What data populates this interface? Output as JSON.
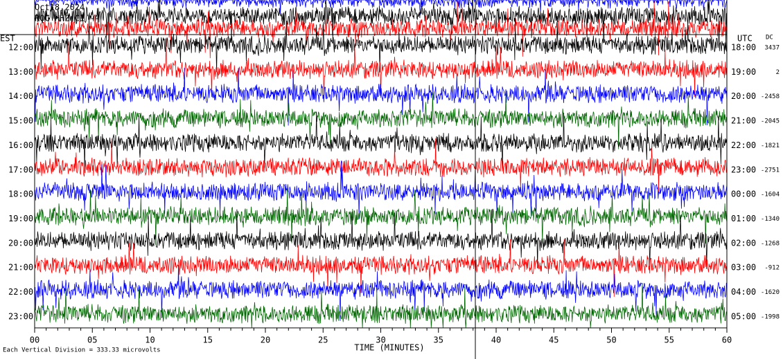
{
  "header": {
    "date": "Oct18,2024",
    "station": "ROC HHZ CI --",
    "left_zone": "EST",
    "right_zone": "UTC",
    "dc_label": "DC"
  },
  "rows": [
    {
      "est": "12:00",
      "utc": "18:00",
      "dc": "3437"
    },
    {
      "est": "13:00",
      "utc": "19:00",
      "dc": "2"
    },
    {
      "est": "14:00",
      "utc": "20:00",
      "dc": "-2458"
    },
    {
      "est": "15:00",
      "utc": "21:00",
      "dc": "-2045"
    },
    {
      "est": "16:00",
      "utc": "22:00",
      "dc": "-1821"
    },
    {
      "est": "17:00",
      "utc": "23:00",
      "dc": "-2751"
    },
    {
      "est": "18:00",
      "utc": "00:00",
      "dc": "-1604"
    },
    {
      "est": "19:00",
      "utc": "01:00",
      "dc": "-1340"
    },
    {
      "est": "20:00",
      "utc": "02:00",
      "dc": "-1268"
    },
    {
      "est": "21:00",
      "utc": "03:00",
      "dc": "-912"
    },
    {
      "est": "22:00",
      "utc": "04:00",
      "dc": "-1620"
    },
    {
      "est": "23:00",
      "utc": "05:00",
      "dc": "-1998"
    }
  ],
  "x_ticks": [
    "00",
    "05",
    "10",
    "15",
    "20",
    "25",
    "30",
    "35",
    "40",
    "45",
    "50",
    "55",
    "60"
  ],
  "x_label": "TIME (MINUTES)",
  "footnote": "Each Vertical Division =  333.33 microvolts"
}
